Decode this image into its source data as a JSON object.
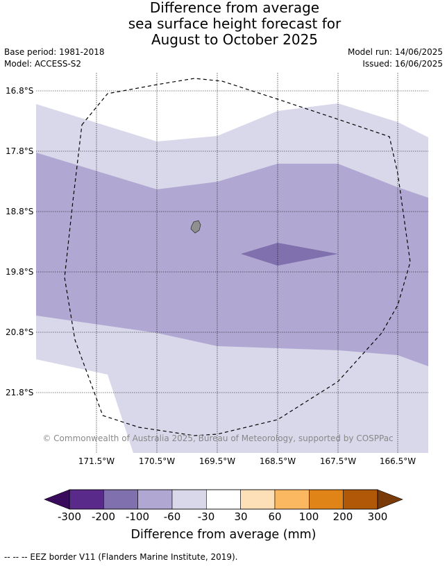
{
  "title": {
    "line1": "Difference from average",
    "line2": "sea surface height forecast for",
    "line3": "August to October 2025"
  },
  "meta": {
    "base_period": "Base period: 1981-2018",
    "model": "Model: ACCESS-S2",
    "model_run": "Model run: 14/06/2025",
    "issued": "Issued: 16/06/2025"
  },
  "map": {
    "latitude_labels": [
      "16.8°S",
      "17.8°S",
      "18.8°S",
      "19.8°S",
      "20.8°S",
      "21.8°S"
    ],
    "longitude_labels": [
      "171.5°W",
      "170.5°W",
      "169.5°W",
      "168.5°W",
      "167.5°W",
      "166.5°W"
    ],
    "copyright": "© Commonwealth of Australia 2025, Bureau of Meteorology, supported by COSPPac",
    "colors": {
      "band_minus_30_to_minus_60": "#d8d8ea",
      "band_minus_60_to_minus_100": "#b0a8d2",
      "band_minus_100_to_minus_200": "#8070ae",
      "land": "#909090"
    }
  },
  "colorbar": {
    "title": "Difference from average (mm)",
    "tick_labels": [
      "-300",
      "-200",
      "-100",
      "-60",
      "-30",
      "30",
      "60",
      "100",
      "200",
      "300"
    ],
    "colors": [
      "#3a0a5c",
      "#5a2a8a",
      "#8070ae",
      "#b0a8d2",
      "#d8d8ea",
      "#ffffff",
      "#fde0b8",
      "#fbb860",
      "#e08418",
      "#b05808",
      "#7a3a08"
    ]
  },
  "footer": {
    "eez_legend": "--  --  -- EEZ border V11 (Flanders Marine Institute, 2019)."
  }
}
